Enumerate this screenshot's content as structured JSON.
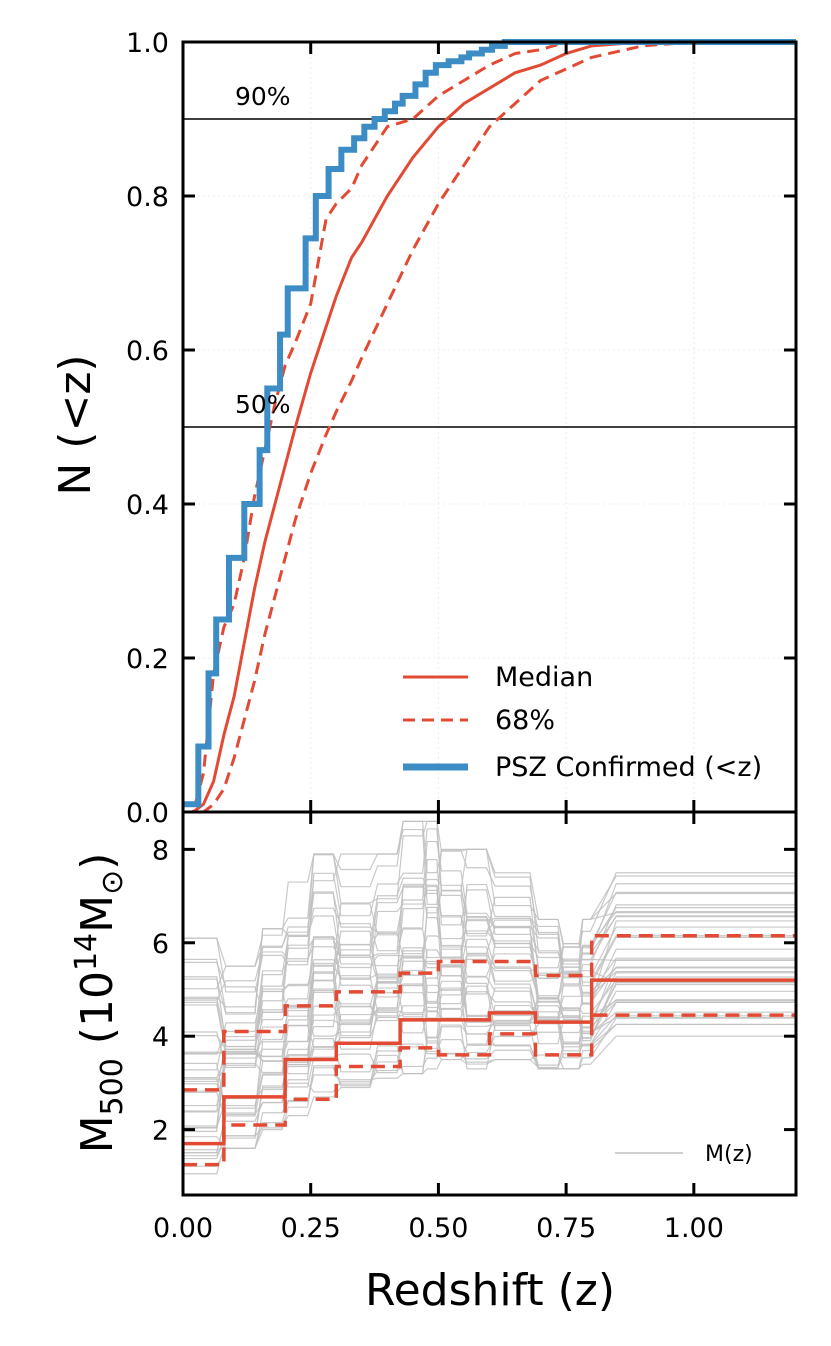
{
  "colors": {
    "median": "#e34a33",
    "confirmed": "#3c8dc5",
    "realization": "#c0c0c0",
    "reference_line": "#000000"
  },
  "chart_data": [
    {
      "type": "line",
      "panel": "top",
      "xlabel": "Redshift (z)",
      "ylabel": "N (<z)",
      "xlim": [
        0.0,
        1.2
      ],
      "ylim": [
        0.0,
        1.0
      ],
      "x_ticks": [
        "0.00",
        "0.25",
        "0.50",
        "0.75",
        "1.00"
      ],
      "y_ticks": [
        "0.0",
        "0.2",
        "0.4",
        "0.6",
        "0.8",
        "1.0"
      ],
      "grid": true,
      "legend_position": "bottom-right",
      "annotations": [
        {
          "text": "90%",
          "y": 0.9
        },
        {
          "text": "50%",
          "y": 0.5
        }
      ],
      "series": [
        {
          "name": "Median",
          "style": "solid",
          "x": [
            0.0,
            0.02,
            0.04,
            0.06,
            0.08,
            0.1,
            0.12,
            0.14,
            0.16,
            0.18,
            0.2,
            0.22,
            0.25,
            0.28,
            0.3,
            0.33,
            0.35,
            0.4,
            0.45,
            0.5,
            0.55,
            0.6,
            0.65,
            0.7,
            0.75,
            0.8,
            0.9,
            1.0,
            1.2
          ],
          "y": [
            0.0,
            0.0,
            0.01,
            0.04,
            0.1,
            0.15,
            0.22,
            0.29,
            0.35,
            0.4,
            0.45,
            0.5,
            0.57,
            0.63,
            0.67,
            0.72,
            0.74,
            0.8,
            0.85,
            0.89,
            0.92,
            0.94,
            0.96,
            0.97,
            0.985,
            0.995,
            1.0,
            1.0,
            1.0
          ]
        },
        {
          "name": "68%",
          "style": "dashed",
          "x": [
            0.0,
            0.02,
            0.04,
            0.06,
            0.08,
            0.1,
            0.12,
            0.14,
            0.16,
            0.18,
            0.2,
            0.22,
            0.25,
            0.28,
            0.3,
            0.33,
            0.35,
            0.4,
            0.45,
            0.5,
            0.55,
            0.6,
            0.65,
            0.7,
            0.75,
            0.8,
            0.9,
            1.0,
            1.2
          ],
          "y": [
            0.0,
            0.0,
            0.05,
            0.18,
            0.24,
            0.27,
            0.33,
            0.41,
            0.47,
            0.53,
            0.58,
            0.61,
            0.66,
            0.77,
            0.79,
            0.81,
            0.84,
            0.89,
            0.9,
            0.93,
            0.95,
            0.97,
            0.985,
            0.99,
            1.0,
            1.0,
            1.0,
            1.0,
            1.0
          ]
        },
        {
          "name": "68% lower",
          "style": "dashed",
          "x": [
            0.0,
            0.02,
            0.04,
            0.06,
            0.08,
            0.1,
            0.12,
            0.14,
            0.16,
            0.18,
            0.2,
            0.22,
            0.25,
            0.28,
            0.3,
            0.33,
            0.35,
            0.4,
            0.45,
            0.5,
            0.55,
            0.6,
            0.65,
            0.7,
            0.75,
            0.8,
            0.9,
            1.0,
            1.2
          ],
          "y": [
            0.0,
            0.0,
            0.0,
            0.01,
            0.03,
            0.07,
            0.12,
            0.17,
            0.23,
            0.28,
            0.33,
            0.38,
            0.44,
            0.49,
            0.52,
            0.56,
            0.59,
            0.66,
            0.73,
            0.79,
            0.84,
            0.89,
            0.92,
            0.95,
            0.965,
            0.98,
            0.995,
            1.0,
            1.0
          ]
        },
        {
          "name": "PSZ Confirmed (<z)",
          "style": "step",
          "x": [
            0.0,
            0.03,
            0.05,
            0.065,
            0.09,
            0.12,
            0.15,
            0.165,
            0.19,
            0.205,
            0.24,
            0.26,
            0.285,
            0.31,
            0.335,
            0.355,
            0.375,
            0.395,
            0.415,
            0.43,
            0.455,
            0.475,
            0.495,
            0.52,
            0.545,
            0.56,
            0.585,
            0.605,
            0.63,
            0.66,
            0.7,
            0.74,
            0.79,
            1.2
          ],
          "y": [
            0.01,
            0.085,
            0.18,
            0.25,
            0.33,
            0.4,
            0.47,
            0.55,
            0.62,
            0.68,
            0.745,
            0.8,
            0.835,
            0.86,
            0.875,
            0.89,
            0.9,
            0.91,
            0.92,
            0.93,
            0.945,
            0.96,
            0.97,
            0.975,
            0.98,
            0.985,
            0.99,
            0.995,
            1.0,
            1.0,
            1.0,
            1.0,
            1.0,
            1.0
          ]
        }
      ],
      "legend": [
        "Median",
        "68%",
        "PSZ Confirmed (<z)"
      ]
    },
    {
      "type": "line",
      "panel": "bottom",
      "xlabel": "Redshift (z)",
      "ylabel": "M500 (10^14 M⊙)",
      "xlim": [
        0.0,
        1.2
      ],
      "ylim": [
        0.6,
        8.8
      ],
      "x_ticks": [
        "0.00",
        "0.25",
        "0.50",
        "0.75",
        "1.00"
      ],
      "y_ticks": [
        "2",
        "4",
        "6",
        "8"
      ],
      "grid": false,
      "legend_position": "bottom-right",
      "bin_edges": [
        0.0,
        0.075,
        0.15,
        0.2,
        0.25,
        0.3,
        0.375,
        0.425,
        0.475,
        0.5,
        0.55,
        0.6,
        0.69,
        0.74,
        0.78,
        0.8,
        1.2
      ],
      "series": [
        {
          "name": "Median",
          "style": "solid-step",
          "x": [
            0.0,
            0.08,
            0.15,
            0.2,
            0.25,
            0.3,
            0.375,
            0.425,
            0.475,
            0.5,
            0.55,
            0.6,
            0.69,
            0.74,
            0.78,
            0.8,
            1.2
          ],
          "y": [
            1.7,
            2.7,
            2.7,
            3.5,
            3.5,
            3.85,
            3.85,
            4.35,
            4.35,
            4.35,
            4.35,
            4.5,
            4.3,
            4.3,
            4.3,
            5.2,
            5.2
          ]
        },
        {
          "name": "68% upper",
          "style": "dashed-step",
          "x": [
            0.0,
            0.08,
            0.15,
            0.2,
            0.25,
            0.3,
            0.375,
            0.425,
            0.475,
            0.5,
            0.55,
            0.6,
            0.69,
            0.74,
            0.78,
            0.8,
            1.2
          ],
          "y": [
            2.85,
            4.1,
            4.1,
            4.65,
            4.65,
            4.95,
            4.95,
            5.35,
            5.35,
            5.6,
            5.6,
            5.6,
            5.3,
            5.3,
            5.3,
            6.15,
            6.15
          ]
        },
        {
          "name": "68% lower",
          "style": "dashed-step",
          "x": [
            0.0,
            0.08,
            0.15,
            0.2,
            0.25,
            0.3,
            0.375,
            0.425,
            0.475,
            0.5,
            0.55,
            0.6,
            0.69,
            0.74,
            0.78,
            0.8,
            1.2
          ],
          "y": [
            1.25,
            2.1,
            2.1,
            2.65,
            2.65,
            3.35,
            3.35,
            3.75,
            3.75,
            3.6,
            3.6,
            4.05,
            3.6,
            3.6,
            3.6,
            4.45,
            4.45
          ]
        }
      ],
      "realizations": {
        "name": "M(z)",
        "count": 40,
        "min_values": [
          1.0,
          1.6,
          2.0,
          2.3,
          2.7,
          2.9,
          3.1,
          3.2,
          3.3,
          3.5,
          3.3,
          3.5,
          3.3,
          3.3,
          3.4,
          4.0,
          4.0
        ],
        "max_values": [
          6.1,
          5.5,
          6.3,
          7.3,
          7.9,
          7.9,
          7.9,
          8.6,
          8.6,
          8.0,
          8.0,
          7.5,
          6.5,
          6.5,
          6.5,
          7.5,
          7.5
        ]
      },
      "legend": [
        "M(z)"
      ]
    }
  ],
  "labels": {
    "top_ylabel": "N (<z)",
    "bottom_ylabel_main": "M",
    "bottom_ylabel_sub": "500",
    "bottom_ylabel_unit_open": " (10",
    "bottom_ylabel_exp": "14",
    "bottom_ylabel_unit_close": "M",
    "bottom_ylabel_sun_sub": "⊙",
    "bottom_ylabel_paren": ")",
    "xlabel": "Redshift (z)",
    "legend_median": "Median",
    "legend_68": "68%",
    "legend_confirmed": "PSZ Confirmed (<z)",
    "legend_mz": "M(z)",
    "ann_90": "90%",
    "ann_50": "50%"
  }
}
